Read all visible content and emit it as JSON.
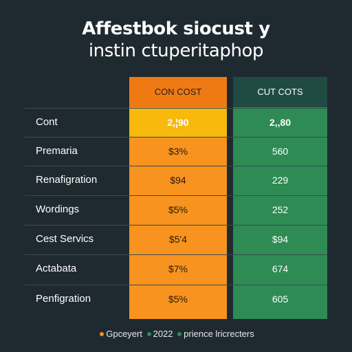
{
  "title": {
    "line1": "Affestbok siocust y",
    "line2": "instin ctuperitaphop"
  },
  "columns": {
    "orange_header": "CON COST",
    "green_header": "CUT COTS"
  },
  "rows": [
    {
      "label": "Cont",
      "v1": "2,¦90",
      "v2": "2,,80"
    },
    {
      "label": "Premaria",
      "v1": "$3%",
      "v2": "560"
    },
    {
      "label": "Renafigration",
      "v1": "$94",
      "v2": "229"
    },
    {
      "label": "Wordings",
      "v1": "$5%",
      "v2": "252"
    },
    {
      "label": "Cest Servics",
      "v1": "$5'4",
      "v2": "$94"
    },
    {
      "label": "Actabata",
      "v1": "$7%",
      "v2": "674"
    },
    {
      "label": "Penfigration",
      "v1": "$5%",
      "v2": "605"
    }
  ],
  "legend": {
    "item1": "Gpceyert",
    "item2": "2022",
    "item3": "prience lricrecters"
  },
  "colors": {
    "background": "#1f2a30",
    "orange": "#f7931e",
    "orange_header": "#ef7a14",
    "highlight": "#f6b90c",
    "green": "#2d8b53",
    "green_header": "#204b43"
  }
}
